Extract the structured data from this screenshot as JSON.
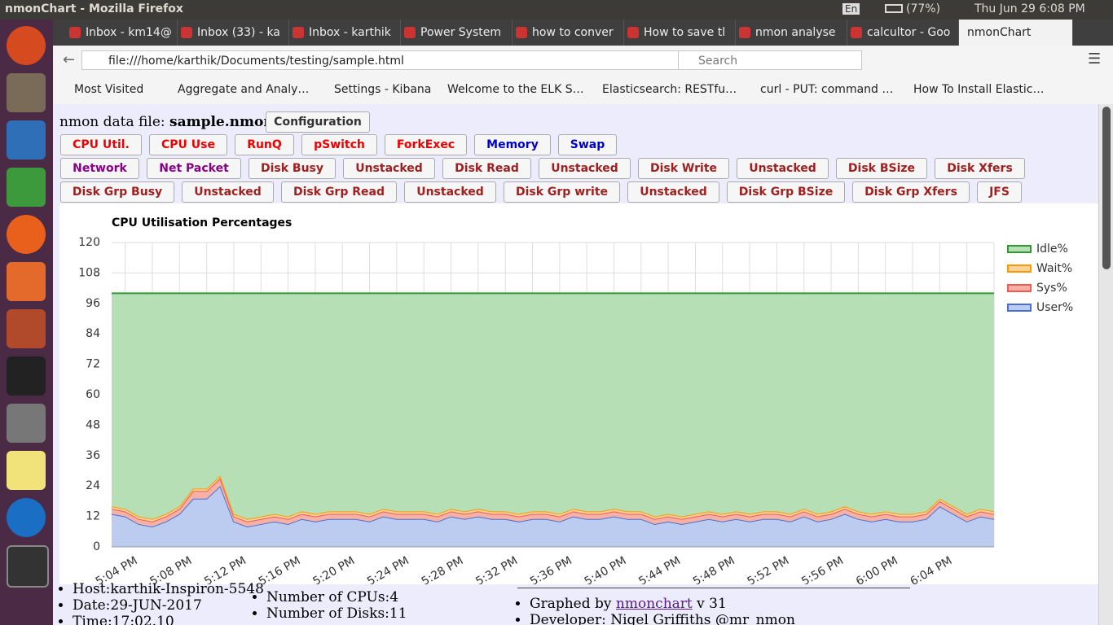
{
  "window": {
    "title": "nmonChart - Mozilla Firefox",
    "lang": "En",
    "battery": "(77%)",
    "clock": "Thu Jun 29  6:08 PM"
  },
  "tabs": [
    "Inbox - km14@",
    "Inbox (33) - ka",
    "Inbox - karthik",
    "Power System",
    "how to conver",
    "How to save tl",
    "nmon analyse",
    "calcultor - Goo",
    "nmonChart"
  ],
  "url": "file:///home/karthik/Documents/testing/sample.html",
  "search": "Search",
  "bookmarks": [
    "Most Visited",
    "Aggregate and Analy…",
    "Settings - Kibana",
    "Welcome to the ELK S…",
    "Elasticsearch: RESTfu…",
    "curl - PUT: command …",
    "How To Install Elastic…"
  ],
  "page": {
    "file_label": "nmon data file:",
    "file_name": "sample.nmon",
    "config": "Configuration",
    "row1": [
      "CPU Util.",
      "CPU Use",
      "RunQ",
      "pSwitch",
      "ForkExec",
      "Memory",
      "Swap"
    ],
    "row2": [
      "Network",
      "Net Packet",
      "Disk Busy",
      "Unstacked",
      "Disk Read",
      "Unstacked",
      "Disk Write",
      "Unstacked",
      "Disk BSize",
      "Disk Xfers"
    ],
    "row3": [
      "Disk Grp Busy",
      "Unstacked",
      "Disk Grp Read",
      "Unstacked",
      "Disk Grp write",
      "Unstacked",
      "Disk Grp BSize",
      "Disk Grp Xfers",
      "JFS"
    ],
    "info1": [
      "Host:karthik-Inspiron-5548",
      "Date:29-JUN-2017",
      "Time:17:02.10"
    ],
    "info2": [
      "Number of CPUs:4",
      "Number of Disks:11"
    ],
    "graphed_by": "Graphed by",
    "link": "nmonchart",
    "version": "v 31",
    "developer": "Developer: Nigel Griffiths @mr_nmon"
  },
  "chart_data": {
    "type": "stacked_area",
    "title": "CPU Utilisation Percentages",
    "categories": [
      null,
      "5:04 PM",
      null,
      null,
      null,
      "5:08 PM",
      null,
      null,
      null,
      "5:12 PM",
      null,
      null,
      null,
      "5:16 PM",
      null,
      null,
      null,
      "5:20 PM",
      null,
      null,
      null,
      "5:24 PM",
      null,
      null,
      null,
      "5:28 PM",
      null,
      null,
      null,
      "5:32 PM",
      null,
      null,
      null,
      "5:36 PM",
      null,
      null,
      null,
      "5:40 PM",
      null,
      null,
      null,
      "5:44 PM",
      null,
      null,
      null,
      "5:48 PM",
      null,
      null,
      null,
      "5:52 PM",
      null,
      null,
      null,
      "5:56 PM",
      null,
      null,
      null,
      "6:00 PM",
      null,
      null,
      null,
      "6:04 PM",
      null,
      null,
      null,
      null
    ],
    "series": [
      {
        "name": "User%",
        "color": "#4a6fd0",
        "fill": "#bccbf0",
        "values": [
          13,
          12,
          9,
          8,
          10,
          13,
          19,
          19,
          24,
          10,
          8,
          9,
          10,
          9,
          11,
          10,
          11,
          11,
          11,
          10,
          12,
          11,
          11,
          11,
          10,
          12,
          11,
          12,
          11,
          11,
          10,
          11,
          11,
          10,
          12,
          11,
          11,
          12,
          11,
          11,
          9,
          10,
          9,
          10,
          11,
          10,
          11,
          10,
          11,
          11,
          10,
          12,
          10,
          11,
          13,
          11,
          10,
          11,
          10,
          10,
          11,
          16,
          13,
          10,
          12,
          11
        ]
      },
      {
        "name": "Sys%",
        "color": "#f05a50",
        "fill": "#f6b1a6",
        "values": [
          2,
          2,
          2,
          2,
          2,
          2,
          3,
          3,
          3,
          2,
          2,
          2,
          2,
          2,
          2,
          2,
          2,
          2,
          2,
          2,
          2,
          2,
          2,
          2,
          2,
          2,
          2,
          2,
          2,
          2,
          2,
          2,
          2,
          2,
          2,
          2,
          2,
          2,
          2,
          2,
          2,
          2,
          2,
          2,
          2,
          2,
          2,
          2,
          2,
          2,
          2,
          2,
          2,
          2,
          2,
          2,
          2,
          2,
          2,
          2,
          2,
          2,
          2,
          2,
          2,
          2
        ]
      },
      {
        "name": "Wait%",
        "color": "#ff9900",
        "fill": "#fbd29a",
        "values": [
          1,
          1,
          1,
          1,
          1,
          1,
          1,
          1,
          1,
          1,
          1,
          1,
          1,
          1,
          1,
          1,
          1,
          1,
          1,
          1,
          1,
          1,
          1,
          1,
          1,
          1,
          1,
          1,
          1,
          1,
          1,
          1,
          1,
          1,
          1,
          1,
          1,
          1,
          1,
          1,
          1,
          1,
          1,
          1,
          1,
          1,
          1,
          1,
          1,
          1,
          1,
          1,
          1,
          1,
          1,
          1,
          1,
          1,
          1,
          1,
          1,
          1,
          1,
          1,
          1,
          1
        ]
      },
      {
        "name": "Idle%",
        "color": "#2f9a2f",
        "fill": "#b6dfb6",
        "values": [
          84,
          85,
          88,
          89,
          87,
          84,
          77,
          77,
          72,
          87,
          89,
          88,
          87,
          88,
          86,
          87,
          86,
          86,
          86,
          87,
          85,
          86,
          86,
          86,
          87,
          85,
          86,
          85,
          86,
          86,
          87,
          86,
          86,
          87,
          85,
          86,
          86,
          85,
          86,
          86,
          88,
          87,
          88,
          87,
          86,
          87,
          86,
          87,
          86,
          86,
          87,
          85,
          87,
          86,
          84,
          86,
          87,
          86,
          87,
          87,
          86,
          81,
          84,
          87,
          85,
          86
        ]
      }
    ],
    "ylim": [
      0,
      120
    ],
    "yticks": [
      0,
      12,
      24,
      36,
      48,
      60,
      72,
      84,
      96,
      108,
      120
    ],
    "grid": true,
    "legend": "right"
  }
}
